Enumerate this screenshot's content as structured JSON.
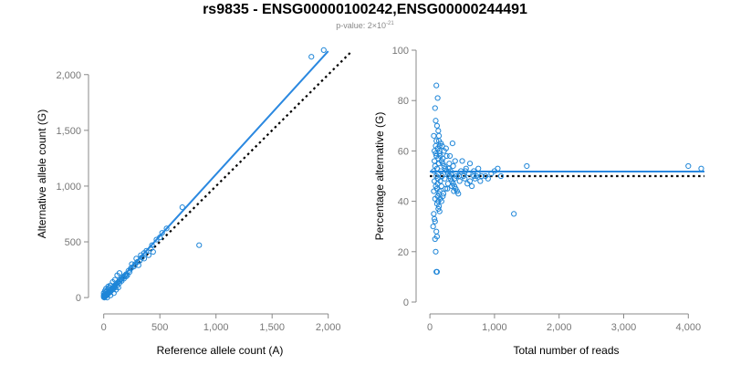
{
  "header": {
    "title": "rs9835 - ENSG00000100242,ENSG00000244491",
    "pvalue_prefix": "p-value: 2×10",
    "pvalue_exponent": "-21"
  },
  "colors": {
    "points": "#1f86d8",
    "fit": "#2a88e0",
    "reference": "#000000",
    "axis": "#888888"
  },
  "chart_data": [
    {
      "type": "scatter",
      "xlabel": "Reference allele count (A)",
      "ylabel": "Alternative allele count (G)",
      "xlim": [
        -30,
        2100
      ],
      "ylim": [
        -40,
        2260
      ],
      "xticks": [
        0,
        500,
        1000,
        1500,
        2000
      ],
      "yticks": [
        0,
        500,
        1000,
        1500,
        2000
      ],
      "xtick_labels": [
        "0",
        "500",
        "1,000",
        "1,500",
        "2,000"
      ],
      "ytick_labels": [
        "0",
        "500",
        "1,000",
        "1,500",
        "2,000"
      ],
      "fit_line": {
        "x": [
          0,
          2000
        ],
        "y": [
          0,
          2210
        ]
      },
      "reference_line": {
        "x": [
          0,
          2200
        ],
        "y": [
          0,
          2200
        ]
      },
      "points": [
        [
          1850,
          2160
        ],
        [
          1960,
          2220
        ],
        [
          700,
          810
        ],
        [
          850,
          470
        ],
        [
          560,
          620
        ],
        [
          500,
          540
        ],
        [
          520,
          580
        ],
        [
          470,
          520
        ],
        [
          430,
          470
        ],
        [
          380,
          420
        ],
        [
          400,
          380
        ],
        [
          360,
          400
        ],
        [
          340,
          360
        ],
        [
          320,
          330
        ],
        [
          300,
          320
        ],
        [
          280,
          300
        ],
        [
          270,
          280
        ],
        [
          250,
          270
        ],
        [
          240,
          260
        ],
        [
          230,
          230
        ],
        [
          220,
          240
        ],
        [
          210,
          200
        ],
        [
          200,
          210
        ],
        [
          190,
          200
        ],
        [
          180,
          190
        ],
        [
          170,
          180
        ],
        [
          160,
          170
        ],
        [
          150,
          160
        ],
        [
          140,
          150
        ],
        [
          130,
          140
        ],
        [
          120,
          130
        ],
        [
          110,
          120
        ],
        [
          100,
          110
        ],
        [
          95,
          100
        ],
        [
          90,
          95
        ],
        [
          85,
          90
        ],
        [
          80,
          85
        ],
        [
          75,
          80
        ],
        [
          70,
          75
        ],
        [
          65,
          70
        ],
        [
          60,
          65
        ],
        [
          55,
          60
        ],
        [
          50,
          55
        ],
        [
          45,
          50
        ],
        [
          40,
          45
        ],
        [
          35,
          40
        ],
        [
          30,
          35
        ],
        [
          25,
          30
        ],
        [
          20,
          25
        ],
        [
          15,
          20
        ],
        [
          10,
          15
        ],
        [
          5,
          10
        ],
        [
          0,
          5
        ],
        [
          5,
          0
        ],
        [
          15,
          10
        ],
        [
          25,
          20
        ],
        [
          35,
          30
        ],
        [
          45,
          40
        ],
        [
          55,
          50
        ],
        [
          65,
          60
        ],
        [
          75,
          70
        ],
        [
          85,
          80
        ],
        [
          100,
          90
        ],
        [
          120,
          110
        ],
        [
          140,
          130
        ],
        [
          160,
          150
        ],
        [
          180,
          170
        ],
        [
          200,
          190
        ],
        [
          30,
          60
        ],
        [
          50,
          90
        ],
        [
          80,
          140
        ],
        [
          100,
          160
        ],
        [
          40,
          80
        ],
        [
          120,
          200
        ],
        [
          140,
          220
        ],
        [
          60,
          110
        ],
        [
          20,
          50
        ],
        [
          30,
          0
        ],
        [
          60,
          20
        ],
        [
          90,
          40
        ],
        [
          110,
          70
        ],
        [
          130,
          90
        ],
        [
          10,
          30
        ],
        [
          10,
          60
        ],
        [
          20,
          80
        ],
        [
          40,
          100
        ],
        [
          0,
          40
        ],
        [
          0,
          20
        ],
        [
          250,
          300
        ],
        [
          290,
          350
        ],
        [
          330,
          380
        ],
        [
          310,
          290
        ],
        [
          360,
          350
        ],
        [
          420,
          440
        ],
        [
          440,
          410
        ]
      ]
    },
    {
      "type": "scatter",
      "xlabel": "Total number of reads",
      "ylabel": "Percentage alternative (G)",
      "xlim": [
        -30,
        4250
      ],
      "ylim": [
        0,
        100
      ],
      "xticks": [
        0,
        1000,
        2000,
        3000,
        4000
      ],
      "yticks": [
        0,
        20,
        40,
        60,
        80,
        100
      ],
      "xtick_labels": [
        "0",
        "1,000",
        "2,000",
        "3,000",
        "4,000"
      ],
      "ytick_labels": [
        "0",
        "20",
        "40",
        "60",
        "80",
        "100"
      ],
      "fit_line": {
        "x": [
          0,
          4250
        ],
        "y": [
          51.8,
          51.8
        ]
      },
      "reference_line": {
        "x": [
          0,
          4250
        ],
        "y": [
          50,
          50
        ]
      },
      "points": [
        [
          100,
          86
        ],
        [
          120,
          81
        ],
        [
          80,
          77
        ],
        [
          90,
          72
        ],
        [
          110,
          70
        ],
        [
          130,
          68
        ],
        [
          60,
          66
        ],
        [
          140,
          64
        ],
        [
          150,
          62
        ],
        [
          70,
          60
        ],
        [
          160,
          58
        ],
        [
          180,
          56
        ],
        [
          200,
          55
        ],
        [
          220,
          54
        ],
        [
          240,
          53
        ],
        [
          260,
          52
        ],
        [
          280,
          51
        ],
        [
          300,
          50
        ],
        [
          320,
          49
        ],
        [
          340,
          48
        ],
        [
          360,
          47
        ],
        [
          380,
          46
        ],
        [
          400,
          45
        ],
        [
          420,
          44
        ],
        [
          440,
          43
        ],
        [
          460,
          48
        ],
        [
          480,
          52
        ],
        [
          500,
          56
        ],
        [
          520,
          50
        ],
        [
          540,
          49
        ],
        [
          560,
          53
        ],
        [
          580,
          47
        ],
        [
          600,
          51
        ],
        [
          620,
          55
        ],
        [
          650,
          46
        ],
        [
          680,
          52
        ],
        [
          700,
          49
        ],
        [
          720,
          50
        ],
        [
          750,
          53
        ],
        [
          780,
          48
        ],
        [
          800,
          50
        ],
        [
          90,
          62
        ],
        [
          100,
          58
        ],
        [
          110,
          45
        ],
        [
          120,
          42
        ],
        [
          130,
          40
        ],
        [
          140,
          38
        ],
        [
          150,
          36
        ],
        [
          60,
          35
        ],
        [
          70,
          33
        ],
        [
          80,
          32
        ],
        [
          50,
          30
        ],
        [
          100,
          28
        ],
        [
          110,
          26
        ],
        [
          90,
          20
        ],
        [
          100,
          12
        ],
        [
          110,
          12
        ],
        [
          80,
          25
        ],
        [
          120,
          47
        ],
        [
          130,
          51
        ],
        [
          140,
          55
        ],
        [
          150,
          44
        ],
        [
          160,
          48
        ],
        [
          170,
          52
        ],
        [
          180,
          46
        ],
        [
          190,
          50
        ],
        [
          200,
          57
        ],
        [
          210,
          43
        ],
        [
          230,
          49
        ],
        [
          250,
          61
        ],
        [
          270,
          45
        ],
        [
          290,
          53
        ],
        [
          310,
          58
        ],
        [
          330,
          51
        ],
        [
          350,
          63
        ],
        [
          370,
          44
        ],
        [
          390,
          56
        ],
        [
          410,
          50
        ],
        [
          1000,
          52
        ],
        [
          1050,
          53
        ],
        [
          1100,
          50
        ],
        [
          1300,
          35
        ],
        [
          1500,
          54
        ],
        [
          4000,
          54
        ],
        [
          4200,
          53
        ],
        [
          60,
          52
        ],
        [
          70,
          48
        ],
        [
          80,
          54
        ],
        [
          90,
          46
        ],
        [
          100,
          50
        ],
        [
          110,
          53
        ],
        [
          120,
          49
        ],
        [
          130,
          57
        ],
        [
          140,
          43
        ],
        [
          150,
          60
        ],
        [
          60,
          44
        ],
        [
          70,
          56
        ],
        [
          80,
          41
        ],
        [
          90,
          59
        ],
        [
          100,
          64
        ],
        [
          110,
          39
        ],
        [
          120,
          61
        ],
        [
          130,
          37
        ],
        [
          140,
          66
        ],
        [
          150,
          59
        ],
        [
          160,
          41
        ],
        [
          170,
          63
        ],
        [
          180,
          40
        ],
        [
          190,
          62
        ],
        [
          200,
          42
        ],
        [
          220,
          60
        ],
        [
          240,
          45
        ],
        [
          260,
          58
        ],
        [
          280,
          47
        ],
        [
          300,
          55
        ],
        [
          320,
          52
        ],
        [
          340,
          46
        ],
        [
          360,
          54
        ],
        [
          380,
          49
        ],
        [
          400,
          51
        ],
        [
          450,
          50
        ],
        [
          550,
          52
        ],
        [
          620,
          48
        ],
        [
          680,
          50
        ],
        [
          740,
          51
        ],
        [
          860,
          50
        ],
        [
          900,
          49
        ],
        [
          950,
          51
        ]
      ]
    }
  ]
}
